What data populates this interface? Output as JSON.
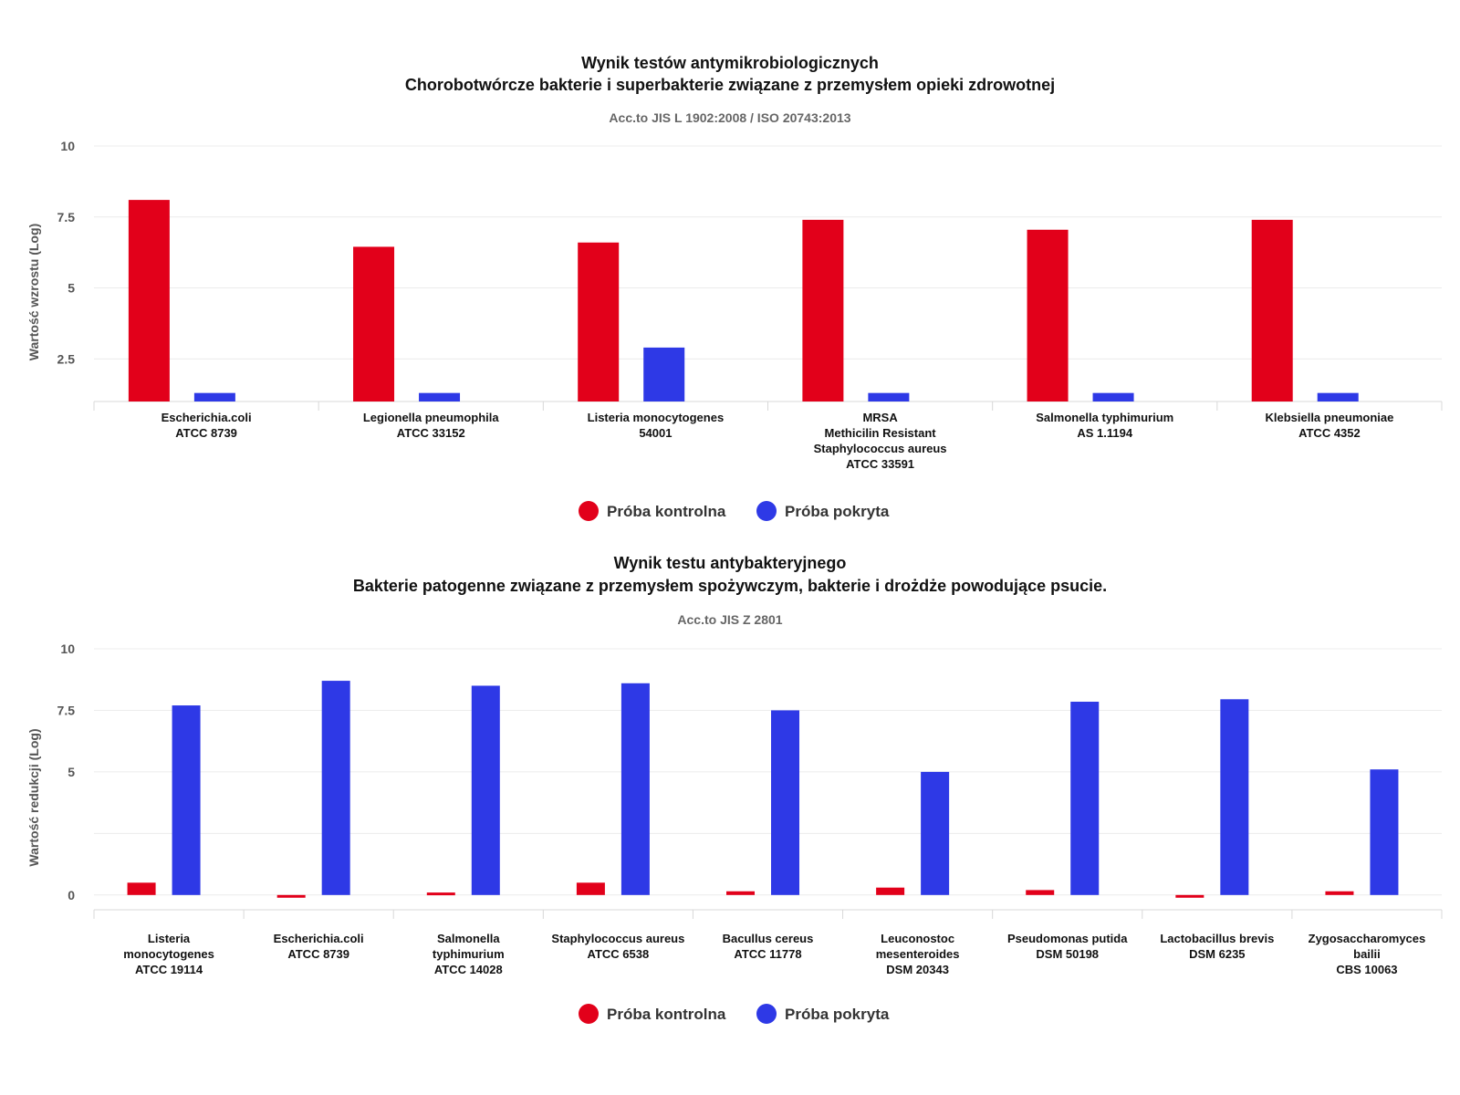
{
  "colors": {
    "control": "#e2001a",
    "coated": "#2e39e6"
  },
  "chart_data": [
    {
      "type": "bar",
      "title_lines": [
        "Wynik testów antymikrobiologicznych",
        "Chorobotwórcze bakterie i superbakterie związane z przemysłem opieki zdrowotnej"
      ],
      "subtitle": "Acc.to JIS L 1902:2008 / ISO 20743:2013",
      "ylabel": "Wartość wzrostu (Log)",
      "ylim": [
        1.0,
        10
      ],
      "yticks": [
        2.5,
        5,
        7.5,
        10
      ],
      "ytick_labels": [
        "2.5",
        "5",
        "7.5",
        "10"
      ],
      "grid": true,
      "legend_position": "bottom",
      "categories": [
        [
          "Escherichia.coli",
          "ATCC 8739"
        ],
        [
          "Legionella pneumophila",
          "ATCC 33152"
        ],
        [
          "Listeria monocytogenes",
          "54001"
        ],
        [
          "MRSA",
          "Methicilin Resistant",
          "Staphylococcus aureus",
          "ATCC 33591"
        ],
        [
          "Salmonella typhimurium",
          "AS 1.1194"
        ],
        [
          "Klebsiella pneumoniae",
          "ATCC 4352"
        ]
      ],
      "series": [
        {
          "name": "Próba kontrolna",
          "values": [
            8.1,
            6.45,
            6.6,
            7.4,
            7.05,
            7.4
          ]
        },
        {
          "name": "Próba pokryta",
          "values": [
            1.3,
            1.3,
            2.9,
            1.3,
            1.3,
            1.3
          ]
        }
      ]
    },
    {
      "type": "bar",
      "title_lines": [
        "Wynik testu antybakteryjnego",
        "Bakterie patogenne związane z przemysłem spożywczym, bakterie i drożdże powodujące psucie."
      ],
      "subtitle": "Acc.to JIS Z 2801",
      "ylabel": "Wartość redukcji (Log)",
      "ylim": [
        -0.6,
        10
      ],
      "yticks": [
        0,
        2.5,
        5,
        7.5,
        10
      ],
      "ytick_labels": [
        "0",
        "",
        "5",
        "7.5",
        "10"
      ],
      "grid": true,
      "legend_position": "bottom",
      "categories": [
        [
          "Listeria",
          "monocytogenes",
          "ATCC 19114"
        ],
        [
          "Escherichia.coli",
          "ATCC 8739"
        ],
        [
          "Salmonella",
          "typhimurium",
          "ATCC 14028"
        ],
        [
          "Staphylococcus aureus",
          "ATCC 6538"
        ],
        [
          "Bacullus cereus",
          "ATCC 11778"
        ],
        [
          "Leuconostoc",
          "mesenteroides",
          "DSM 20343"
        ],
        [
          "Pseudomonas putida",
          "DSM 50198"
        ],
        [
          "Lactobacillus brevis",
          "DSM 6235"
        ],
        [
          "Zygosaccharomyces",
          "bailii",
          "CBS 10063"
        ]
      ],
      "series": [
        {
          "name": "Próba kontrolna",
          "values": [
            0.5,
            -0.1,
            0.1,
            0.5,
            0.15,
            0.3,
            0.2,
            -0.1,
            0.15
          ]
        },
        {
          "name": "Próba pokryta",
          "values": [
            7.7,
            8.7,
            8.5,
            8.6,
            7.5,
            5.0,
            7.85,
            7.95,
            5.1
          ]
        }
      ]
    }
  ]
}
